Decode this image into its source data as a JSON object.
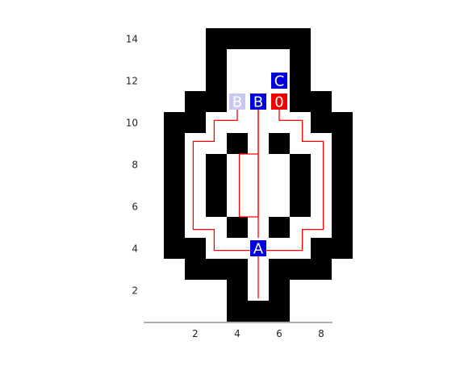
{
  "x_ticks": [
    2,
    4,
    6,
    8
  ],
  "y_ticks": [
    2,
    4,
    6,
    8,
    10,
    12,
    14
  ],
  "colors": {
    "wall": "#000000",
    "path": "#ff0000",
    "token_blue": "#0000dd",
    "token_faded": "#c8c8f0",
    "token_red": "#ee0000",
    "token_text": "#ffffff"
  },
  "maze": {
    "width": 9,
    "height": 14,
    "rows_top_to_bottom": [
      "..#####..",
      "..#...#..",
      "..#...#..",
      ".##...##.",
      "##.....##",
      "#..#.#..#",
      "#.#...#.#",
      "#.#...#.#",
      "#.#...#.#",
      "#..#.#..#",
      "##.....##",
      ".###.###.",
      "...#.#...",
      "...###..."
    ]
  },
  "paths": [
    [
      [
        5,
        11
      ],
      [
        5,
        4.5
      ]
    ],
    [
      [
        5,
        11
      ],
      [
        5,
        5.5
      ],
      [
        4.1,
        5.5
      ],
      [
        4.1,
        8.5
      ],
      [
        5,
        8.5
      ]
    ],
    [
      [
        4,
        11
      ],
      [
        4,
        10.1
      ],
      [
        2.9,
        10.1
      ],
      [
        2.9,
        9.1
      ],
      [
        1.9,
        9.1
      ],
      [
        1.9,
        4.9
      ],
      [
        2.9,
        4.9
      ],
      [
        2.9,
        3.9
      ],
      [
        5,
        3.9
      ],
      [
        7.1,
        3.9
      ],
      [
        7.1,
        4.9
      ],
      [
        8.1,
        4.9
      ],
      [
        8.1,
        9.1
      ],
      [
        7.1,
        9.1
      ],
      [
        7.1,
        10.1
      ],
      [
        6,
        10.1
      ],
      [
        6,
        11
      ]
    ],
    [
      [
        5,
        3.9
      ],
      [
        5,
        1.6
      ]
    ]
  ],
  "tokens": [
    {
      "label": "C",
      "x": 6,
      "y": 12,
      "style": "blue"
    },
    {
      "label": "B",
      "x": 4,
      "y": 11,
      "style": "faded"
    },
    {
      "label": "B",
      "x": 5,
      "y": 11,
      "style": "blue"
    },
    {
      "label": "0",
      "x": 6,
      "y": 11,
      "style": "red"
    },
    {
      "label": "A",
      "x": 5,
      "y": 4,
      "style": "blue"
    }
  ]
}
